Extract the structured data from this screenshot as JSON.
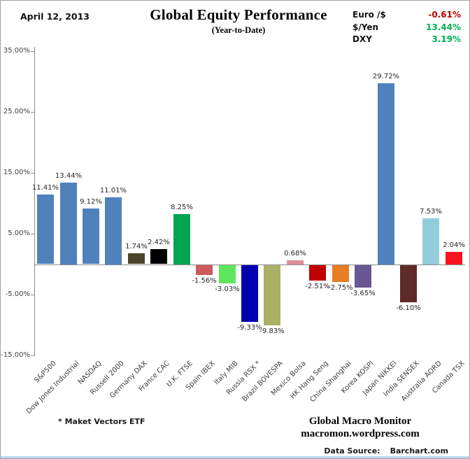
{
  "header": {
    "date": "April 12, 2013",
    "title": "Global Equity Performance",
    "subtitle": "(Year-to-Date)",
    "quotes": [
      {
        "label": "Euro /$",
        "value": "-0.61%",
        "color": "#c00000"
      },
      {
        "label": "$/Yen",
        "value": "13.44%",
        "color": "#00b050"
      },
      {
        "label": "DXY",
        "value": "3.19%",
        "color": "#00b050"
      }
    ]
  },
  "chart_data": {
    "type": "bar",
    "title": "Global Equity Performance",
    "subtitle": "(Year-to-Date)",
    "categories": [
      "S&P500",
      "Dow Jones Industrial",
      "NASDAQ",
      "Russell 2000",
      "Germany DAX",
      "France CAC",
      "U.K. FTSE",
      "Spain IBEX",
      "Italy MIB",
      "Russia RSX *",
      "Brazil BOVESPA",
      "Mexico Bolsa",
      "HK Hang Seng",
      "China Shanghai",
      "Korea KOSPI",
      "Japan NIKKEI",
      "India SENSEX",
      "Australia AORD",
      "Canada TSX"
    ],
    "values": [
      11.41,
      13.44,
      9.12,
      11.01,
      1.74,
      2.42,
      8.25,
      -1.56,
      -3.03,
      -9.33,
      -9.83,
      0.68,
      -2.51,
      -2.75,
      -3.65,
      29.72,
      -6.1,
      7.53,
      2.04
    ],
    "labels": [
      "11.41%",
      "13.44%",
      "9.12%",
      "11.01%",
      "1.74%",
      "2.42%",
      "8.25%",
      "-1.56%",
      "-3.03%",
      "-9.33%",
      "-9.83%",
      "0.68%",
      "-2.51%",
      "-2.75%",
      "-3.65%",
      "29.72%",
      "-6.10%",
      "7.53%",
      "2.04%"
    ],
    "bar_colors": [
      "#4f81bd",
      "#4f81bd",
      "#4f81bd",
      "#4f81bd",
      "#4a452b",
      "#000000",
      "#00a550",
      "#cd5b5b",
      "#5fe65f",
      "#0000b2",
      "#a9b164",
      "#dd8e98",
      "#c00000",
      "#e87d23",
      "#695694",
      "#4f81bd",
      "#5f2b28",
      "#92cddc",
      "#fa1420"
    ],
    "ylim": [
      -15,
      35
    ],
    "yticks": [
      "35.00%",
      "25.00%",
      "15.00%",
      "5.00%",
      "-5.00%",
      "-15.00%"
    ],
    "ytick_values": [
      35,
      25,
      15,
      5,
      -5,
      -15
    ],
    "grid": false,
    "legend": "none",
    "xlabel": "",
    "ylabel": ""
  },
  "footer": {
    "footnote": "* Maket  Vectors ETF",
    "brand_line1": "Global Macro Monitor",
    "brand_line2": "macromon.wordpress.com",
    "source_label": "Data Source:",
    "source_value": "Barchart.com"
  }
}
